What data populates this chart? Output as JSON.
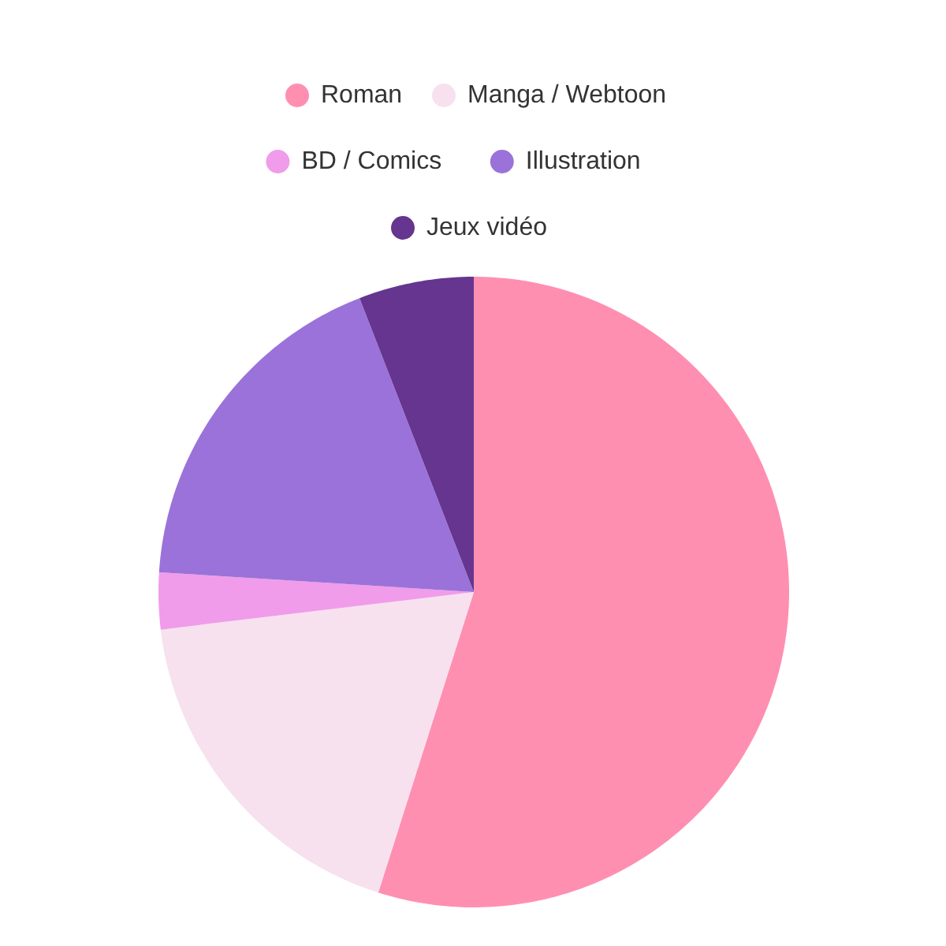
{
  "chart_data": {
    "type": "pie",
    "categories": [
      "Roman",
      "Manga / Webtoon",
      "BD / Comics",
      "Illustration",
      "Jeux vidéo"
    ],
    "values": [
      54.9,
      18.2,
      2.9,
      18.1,
      5.9
    ],
    "colors": [
      "#ff8fb1",
      "#f7e1ee",
      "#f09cea",
      "#9b72d9",
      "#65358f"
    ],
    "legend": "top"
  }
}
